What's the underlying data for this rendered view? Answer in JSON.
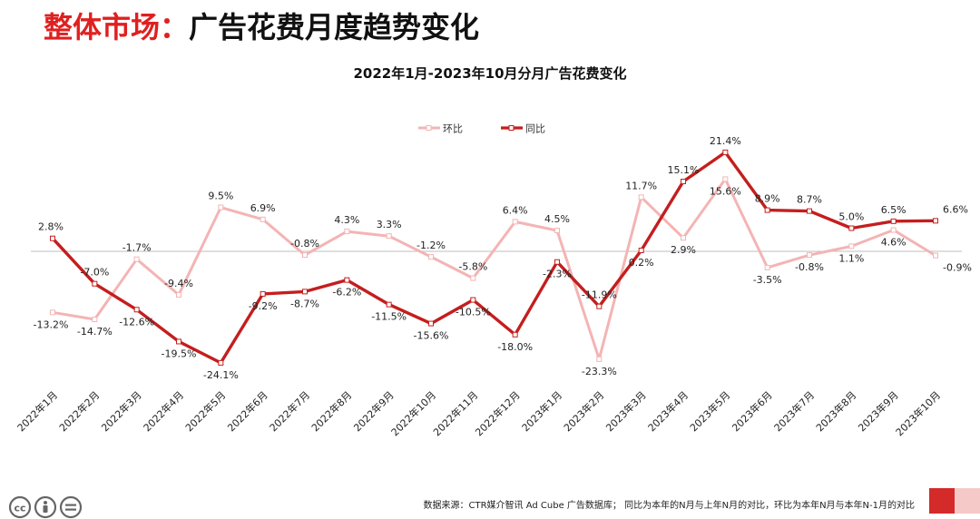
{
  "page_title": {
    "part1": "整体市场：",
    "part2": "广告花费月度趋势变化"
  },
  "source_text": "数据来源：CTR媒介智讯 Ad Cube 广告数据库； 同比为本年的N月与上年N月的对比，环比为本年N月与本年N-1月的对比",
  "colors": {
    "title_red": "#e02020",
    "series_hb": "#f4b4b4",
    "series_tb": "#c41e1e",
    "axis": "#bfbfbf",
    "deco_dark": "#d42a2a",
    "deco_light": "#f6c9c9"
  },
  "icons": [
    "creative-commons-cc-icon",
    "creative-commons-by-icon",
    "creative-commons-nd-icon"
  ],
  "chart_data": {
    "type": "line",
    "title": "2022年1月-2023年10月分月广告花费变化",
    "categories": [
      "2022年1月",
      "2022年2月",
      "2022年3月",
      "2022年4月",
      "2022年5月",
      "2022年6月",
      "2022年7月",
      "2022年8月",
      "2022年9月",
      "2022年10月",
      "2022年11月",
      "2022年12月",
      "2023年1月",
      "2023年2月",
      "2023年3月",
      "2023年4月",
      "2023年5月",
      "2023年6月",
      "2023年7月",
      "2023年8月",
      "2023年9月",
      "2023年10月"
    ],
    "series": [
      {
        "name": "环比",
        "values": [
          -13.2,
          -14.7,
          -1.7,
          -9.4,
          9.5,
          6.9,
          -0.8,
          4.3,
          3.3,
          -1.2,
          -5.8,
          6.4,
          4.5,
          -23.3,
          11.7,
          2.9,
          15.6,
          -3.5,
          -0.8,
          1.1,
          4.6,
          -0.9
        ],
        "labels": [
          "-13.2%",
          "-14.7%",
          "-1.7%",
          "-9.4%",
          "9.5%",
          "6.9%",
          "-0.8%",
          "4.3%",
          "3.3%",
          "-1.2%",
          "-5.8%",
          "6.4%",
          "4.5%",
          "-23.3%",
          "11.7%",
          "2.9%",
          "15.6%",
          "-3.5%",
          "-0.8%",
          "1.1%",
          "4.6%",
          "-0.9%"
        ]
      },
      {
        "name": "同比",
        "values": [
          2.8,
          -7.0,
          -12.6,
          -19.5,
          -24.1,
          -9.2,
          -8.7,
          -6.2,
          -11.5,
          -15.6,
          -10.5,
          -18.0,
          -2.3,
          -11.9,
          0.2,
          15.1,
          21.4,
          8.9,
          8.7,
          5.0,
          6.5,
          6.6
        ],
        "labels": [
          "2.8%",
          "-7.0%",
          "-12.6%",
          "-19.5%",
          "-24.1%",
          "-9.2%",
          "-8.7%",
          "-6.2%",
          "-11.5%",
          "-15.6%",
          "-10.5%",
          "-18.0%",
          "-2.3%",
          "-11.9%",
          "0.2%",
          "15.1%",
          "21.4%",
          "8.9%",
          "8.7%",
          "5.0%",
          "6.5%",
          "6.6%"
        ]
      }
    ],
    "ylim": [
      -27,
      24
    ],
    "grid": false,
    "legend": "top-center"
  }
}
